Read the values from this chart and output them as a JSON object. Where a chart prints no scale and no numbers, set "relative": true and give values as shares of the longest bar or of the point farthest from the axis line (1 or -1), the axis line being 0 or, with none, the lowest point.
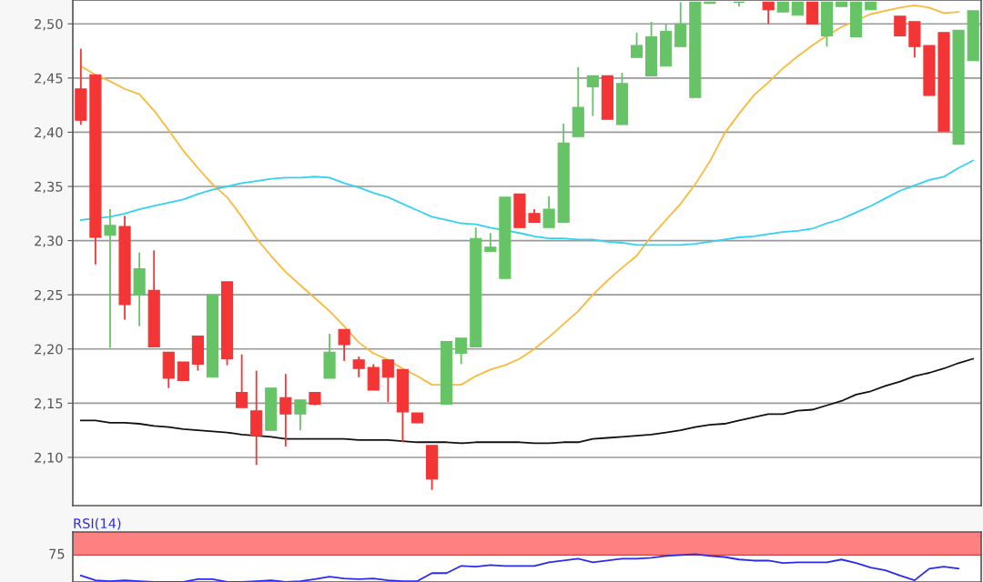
{
  "chart_data": [
    {
      "type": "candlestick",
      "categories": [
        null,
        null,
        null,
        null,
        null,
        null,
        null,
        null,
        null,
        null,
        null,
        null,
        null,
        null,
        null,
        null,
        null,
        null,
        null,
        null,
        null,
        null,
        null,
        null,
        null,
        null,
        null,
        null,
        null,
        null,
        null,
        null,
        null,
        null,
        null,
        null,
        null,
        null,
        null,
        null,
        null,
        null,
        null,
        null,
        null,
        null,
        null,
        null,
        null,
        null,
        null,
        null,
        null,
        null,
        null,
        null,
        null,
        null,
        null,
        null,
        null,
        null
      ],
      "ohlc": [
        [
          2.44,
          2.477,
          2.407,
          2.411
        ],
        [
          2.453,
          2.453,
          2.278,
          2.303
        ],
        [
          2.305,
          2.329,
          2.201,
          2.314
        ],
        [
          2.313,
          2.323,
          2.227,
          2.241
        ],
        [
          2.25,
          2.289,
          2.221,
          2.274
        ],
        [
          2.254,
          2.291,
          2.202,
          2.202
        ],
        [
          2.197,
          2.197,
          2.164,
          2.173
        ],
        [
          2.188,
          2.188,
          2.171,
          2.171
        ],
        [
          2.212,
          2.212,
          2.18,
          2.186
        ],
        [
          2.174,
          2.25,
          2.174,
          2.25
        ],
        [
          2.262,
          2.262,
          2.185,
          2.191
        ],
        [
          2.16,
          2.195,
          2.146,
          2.146
        ],
        [
          2.143,
          2.18,
          2.093,
          2.12
        ],
        [
          2.125,
          2.164,
          2.125,
          2.164
        ],
        [
          2.155,
          2.177,
          2.11,
          2.14
        ],
        [
          2.14,
          2.153,
          2.125,
          2.153
        ],
        [
          2.16,
          2.16,
          2.148,
          2.149
        ],
        [
          2.173,
          2.214,
          2.173,
          2.197
        ],
        [
          2.218,
          2.218,
          2.189,
          2.204
        ],
        [
          2.19,
          2.193,
          2.174,
          2.182
        ],
        [
          2.183,
          2.186,
          2.162,
          2.162
        ],
        [
          2.19,
          2.19,
          2.151,
          2.174
        ],
        [
          2.181,
          2.181,
          2.114,
          2.142
        ],
        [
          2.141,
          2.141,
          2.132,
          2.132
        ],
        [
          2.111,
          2.111,
          2.07,
          2.08
        ],
        [
          2.149,
          2.207,
          2.149,
          2.207
        ],
        [
          2.196,
          2.21,
          2.186,
          2.21
        ],
        [
          2.202,
          2.312,
          2.202,
          2.302
        ],
        [
          2.29,
          2.307,
          2.29,
          2.294
        ],
        [
          2.265,
          2.34,
          2.265,
          2.34
        ],
        [
          2.343,
          2.343,
          2.312,
          2.312
        ],
        [
          2.325,
          2.329,
          2.317,
          2.317
        ],
        [
          2.312,
          2.341,
          2.312,
          2.329
        ],
        [
          2.317,
          2.408,
          2.317,
          2.39
        ],
        [
          2.396,
          2.46,
          2.396,
          2.423
        ],
        [
          2.442,
          2.452,
          2.415,
          2.452
        ],
        [
          2.452,
          2.452,
          2.412,
          2.412
        ],
        [
          2.407,
          2.455,
          2.407,
          2.445
        ],
        [
          2.469,
          2.492,
          2.469,
          2.48
        ],
        [
          2.452,
          2.502,
          2.452,
          2.488
        ],
        [
          2.461,
          2.5,
          2.461,
          2.493
        ],
        [
          2.479,
          2.52,
          2.479,
          2.5
        ],
        [
          2.432,
          2.52,
          2.432,
          2.52
        ],
        [
          2.519,
          2.52,
          2.519,
          2.52
        ],
        null,
        [
          2.52,
          2.52,
          2.516,
          2.52
        ],
        null,
        [
          2.52,
          2.52,
          2.5,
          2.513
        ],
        [
          2.511,
          2.52,
          2.511,
          2.52
        ],
        [
          2.508,
          2.52,
          2.508,
          2.52
        ],
        [
          2.52,
          2.52,
          2.5,
          2.5
        ],
        [
          2.489,
          2.52,
          2.479,
          2.52
        ],
        [
          2.516,
          2.52,
          2.516,
          2.52
        ],
        [
          2.488,
          2.52,
          2.488,
          2.52
        ],
        [
          2.513,
          2.52,
          2.513,
          2.52
        ],
        null,
        [
          2.507,
          2.507,
          2.489,
          2.489
        ],
        [
          2.502,
          2.502,
          2.469,
          2.479
        ],
        [
          2.48,
          2.48,
          2.434,
          2.434
        ],
        [
          2.492,
          2.492,
          2.401,
          2.401
        ],
        [
          2.389,
          2.494,
          2.389,
          2.494
        ],
        [
          2.466,
          2.512,
          2.466,
          2.512
        ]
      ],
      "colors": [
        "#f43535",
        "#f43535",
        "#66c466",
        "#f43535",
        "#66c466",
        "#f43535",
        "#f43535",
        "#f43535",
        "#f43535",
        "#66c466",
        "#f43535",
        "#f43535",
        "#f43535",
        "#66c466",
        "#f43535",
        "#66c466",
        "#f43535",
        "#66c466",
        "#f43535",
        "#f43535",
        "#f43535",
        "#f43535",
        "#f43535",
        "#f43535",
        "#f43535",
        "#66c466",
        "#66c466",
        "#66c466",
        "#66c466",
        "#66c466",
        "#f43535",
        "#f43535",
        "#66c466",
        "#66c466",
        "#66c466",
        "#66c466",
        "#f43535",
        "#66c466",
        "#66c466",
        "#66c466",
        "#66c466",
        "#66c466",
        "#66c466",
        "#66c466",
        null,
        "#66c466",
        null,
        "#f43535",
        "#66c466",
        "#66c466",
        "#f43535",
        "#66c466",
        "#66c466",
        "#66c466",
        "#66c466",
        null,
        "#f43535",
        "#f43535",
        "#f43535",
        "#f43535",
        "#66c466",
        "#66c466"
      ],
      "series": [
        {
          "type": "line",
          "color": "#fbb938",
          "values": [
            2.461,
            2.453,
            2.447,
            2.44,
            2.435,
            2.42,
            2.402,
            2.383,
            2.367,
            2.352,
            2.34,
            2.322,
            2.302,
            2.286,
            2.271,
            2.259,
            2.247,
            2.235,
            2.221,
            2.206,
            2.196,
            2.19,
            2.182,
            2.175,
            2.167,
            null,
            2.167,
            2.175,
            2.181,
            2.185,
            2.191,
            2.2,
            2.211,
            2.223,
            2.235,
            2.25,
            2.263,
            2.275,
            2.286,
            2.304,
            2.319,
            2.334,
            2.352,
            2.373,
            2.399,
            2.417,
            2.434,
            2.446,
            2.459,
            2.47,
            2.48,
            2.489,
            2.497,
            null,
            2.509,
            2.512,
            2.515,
            2.517,
            2.515,
            2.51,
            2.511,
            null
          ]
        },
        {
          "type": "line",
          "color": "#33d1f2",
          "values": [
            2.319,
            null,
            2.322,
            2.325,
            2.329,
            2.332,
            2.335,
            2.338,
            2.343,
            2.347,
            2.35,
            2.353,
            2.355,
            2.357,
            2.358,
            2.358,
            2.359,
            2.358,
            2.353,
            2.349,
            2.344,
            2.34,
            2.334,
            2.328,
            2.322,
            2.319,
            2.316,
            2.315,
            2.312,
            null,
            2.307,
            2.304,
            2.302,
            2.302,
            2.301,
            2.301,
            2.299,
            2.298,
            2.296,
            2.296,
            2.296,
            2.296,
            2.297,
            2.299,
            2.301,
            2.303,
            2.304,
            2.306,
            2.308,
            2.309,
            2.311,
            2.316,
            2.32,
            2.326,
            2.332,
            2.339,
            2.346,
            2.351,
            2.356,
            2.359,
            2.367,
            2.374
          ]
        },
        {
          "type": "line",
          "color": "#111111",
          "values": [
            2.134,
            2.134,
            2.132,
            2.132,
            2.131,
            2.129,
            2.128,
            2.126,
            2.125,
            2.124,
            2.123,
            2.121,
            null,
            2.119,
            2.117,
            2.117,
            2.117,
            2.117,
            2.117,
            2.116,
            2.116,
            2.116,
            2.115,
            2.114,
            2.114,
            2.114,
            2.113,
            2.114,
            2.114,
            2.114,
            2.114,
            2.113,
            2.113,
            2.114,
            2.114,
            2.117,
            2.118,
            2.119,
            2.12,
            2.121,
            2.123,
            2.125,
            2.128,
            2.13,
            2.131,
            2.134,
            2.137,
            2.14,
            2.14,
            2.143,
            2.144,
            2.148,
            2.152,
            2.158,
            2.161,
            2.166,
            2.17,
            2.175,
            2.178,
            2.182,
            2.187,
            2.191
          ]
        }
      ],
      "ylim": [
        2.0555,
        2.522
      ],
      "yticks": [
        {
          "value": 2.1,
          "label": "2,10"
        },
        {
          "value": 2.15,
          "label": "2,15"
        },
        {
          "value": 2.2,
          "label": "2,20"
        },
        {
          "value": 2.25,
          "label": "2,25"
        },
        {
          "value": 2.3,
          "label": "2,30"
        },
        {
          "value": 2.35,
          "label": "2,35"
        },
        {
          "value": 2.4,
          "label": "2,40"
        },
        {
          "value": 2.45,
          "label": "2,45"
        },
        {
          "value": 2.5,
          "label": "2,50"
        }
      ],
      "grid": "y",
      "tick_labels": "y"
    },
    {
      "type": "line",
      "title": "RSI(14)",
      "categories": [
        null,
        null,
        null,
        null,
        null,
        null,
        null,
        null,
        null,
        null,
        null,
        null,
        null,
        null,
        null,
        null,
        null,
        null,
        null,
        null,
        null,
        null,
        null,
        null,
        null,
        null,
        null,
        null,
        null,
        null,
        null,
        null,
        null,
        null,
        null,
        null,
        null,
        null,
        null,
        null,
        null,
        null,
        null,
        null,
        null,
        null,
        null,
        null,
        null,
        null,
        null,
        null,
        null,
        null,
        null,
        null,
        null,
        null,
        null,
        null,
        null,
        null
      ],
      "series": [
        {
          "color": "#2b2bf0",
          "values": [
            0.23,
            0.06,
            0.03,
            0.06,
            0.03,
            0,
            0,
            0,
            0.1,
            0.1,
            0,
            0,
            0.03,
            0.06,
            0,
            0.03,
            0.1,
            0.19,
            0.13,
            0.1,
            0.13,
            0.06,
            0.03,
            0.03,
            0.32,
            0.32,
            0.58,
            0.55,
            0.61,
            0.58,
            0.58,
            0.58,
            0.71,
            0.77,
            0.84,
            0.71,
            0.77,
            0.84,
            0.84,
            0.87,
            0.94,
            0.97,
            1,
            0.94,
            0.9,
            0.81,
            0.77,
            0.77,
            0.68,
            0.71,
            0.71,
            0.71,
            0.81,
            0.68,
            0.52,
            0.42,
            0.23,
            0.06,
            0.48,
            0.55,
            0.48,
            null
          ]
        }
      ],
      "relative": true,
      "annotations": [
        "75"
      ],
      "bands": [
        {
          "axis": "y",
          "from": 0.97,
          "to": 1.8,
          "color": "#ff8080"
        }
      ],
      "tick_labels": "y"
    }
  ]
}
